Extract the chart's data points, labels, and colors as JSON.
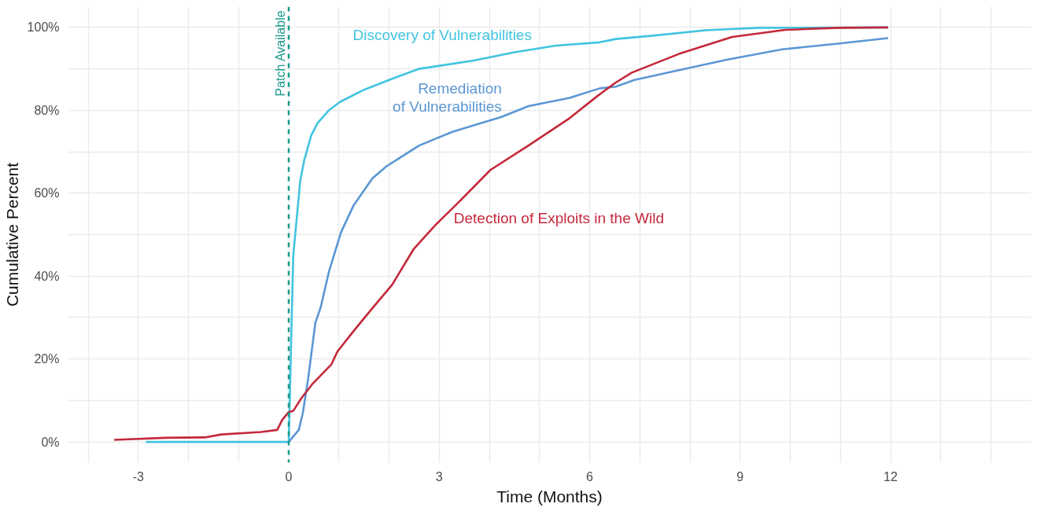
{
  "chart_data": {
    "type": "line",
    "xlabel": "Time (Months)",
    "ylabel": "Cumulative Percent",
    "xlim": [
      -4.4,
      14.8
    ],
    "ylim": [
      -5,
      105
    ],
    "xticks": [
      {
        "value": -4,
        "label": null
      },
      {
        "value": -3,
        "label": "-3"
      },
      {
        "value": -2,
        "label": null
      },
      {
        "value": -1,
        "label": null
      },
      {
        "value": 0,
        "label": "0"
      },
      {
        "value": 1,
        "label": null
      },
      {
        "value": 2,
        "label": null
      },
      {
        "value": 3,
        "label": "3"
      },
      {
        "value": 4,
        "label": null
      },
      {
        "value": 5,
        "label": null
      },
      {
        "value": 6,
        "label": "6"
      },
      {
        "value": 7,
        "label": null
      },
      {
        "value": 8,
        "label": null
      },
      {
        "value": 9,
        "label": "9"
      },
      {
        "value": 10,
        "label": null
      },
      {
        "value": 11,
        "label": null
      },
      {
        "value": 12,
        "label": "12"
      },
      {
        "value": 13,
        "label": null
      },
      {
        "value": 14,
        "label": null
      }
    ],
    "yticks": [
      {
        "value": 0,
        "label": "0%"
      },
      {
        "value": 10,
        "label": null
      },
      {
        "value": 20,
        "label": "20%"
      },
      {
        "value": 30,
        "label": null
      },
      {
        "value": 40,
        "label": "40%"
      },
      {
        "value": 50,
        "label": null
      },
      {
        "value": 60,
        "label": "60%"
      },
      {
        "value": 70,
        "label": null
      },
      {
        "value": 80,
        "label": "80%"
      },
      {
        "value": 90,
        "label": null
      },
      {
        "value": 100,
        "label": "100%"
      }
    ],
    "grid": true,
    "line_style": "solid",
    "marker": "none",
    "ref_lines": [
      {
        "axis": "x",
        "value": 0,
        "label": "Patch Available",
        "color": "#1a9988",
        "line_style": "dashed"
      }
    ],
    "series": [
      {
        "name": "Discovery of Vulnerabilities",
        "color": "#41c4e0",
        "x": [
          -2.85,
          0,
          0.09,
          0.23,
          0.31,
          0.45,
          0.58,
          0.8,
          1.02,
          1.51,
          2.06,
          2.6,
          3.69,
          4.5,
          5.33,
          6.2,
          6.52,
          7.26,
          8.31,
          9.37,
          11.95
        ],
        "values": [
          0,
          0,
          45,
          63,
          68,
          74,
          77,
          80,
          82,
          85,
          87.6,
          90,
          92,
          94,
          95.6,
          96.4,
          97.2,
          98,
          99.3,
          99.9,
          100
        ]
      },
      {
        "name": "Remediation\nof Vulnerabilities",
        "color": "#5b97d5",
        "x": [
          0,
          0.2,
          0.28,
          0.39,
          0.53,
          0.64,
          0.8,
          1.04,
          1.29,
          1.67,
          1.95,
          2.6,
          3.26,
          4.24,
          4.78,
          5.6,
          6.2,
          6.52,
          6.89,
          7.78,
          8.73,
          9.84,
          10.95,
          11.95
        ],
        "values": [
          0,
          2.9,
          6.9,
          15.5,
          28.7,
          32.6,
          41,
          50.5,
          57,
          63.6,
          66.5,
          71.5,
          74.8,
          78.4,
          81,
          83,
          85.3,
          85.7,
          87.3,
          89.7,
          92.2,
          94.7,
          96.1,
          97.4
        ]
      },
      {
        "name": "Detection of Exploits in the Wild",
        "color": "#c4283a",
        "x": [
          -3.48,
          -2.45,
          -1.66,
          -1.34,
          -0.55,
          -0.23,
          -0.13,
          0,
          0.09,
          0.25,
          0.48,
          0.85,
          0.97,
          1.29,
          1.67,
          2.06,
          2.49,
          2.93,
          3.37,
          4.02,
          4.78,
          5.6,
          6.15,
          6.52,
          6.84,
          7.78,
          8.84,
          9.9,
          10.95,
          11.95
        ],
        "values": [
          0.5,
          1,
          1.1,
          1.8,
          2.4,
          2.9,
          5.3,
          7.2,
          7.5,
          10.5,
          14.1,
          18.7,
          21.8,
          26.7,
          32.3,
          37.9,
          46.5,
          52.4,
          57.6,
          65.6,
          71.5,
          78.1,
          83.4,
          86.7,
          89.1,
          93.6,
          97.7,
          99.4,
          99.9,
          100
        ]
      }
    ]
  }
}
